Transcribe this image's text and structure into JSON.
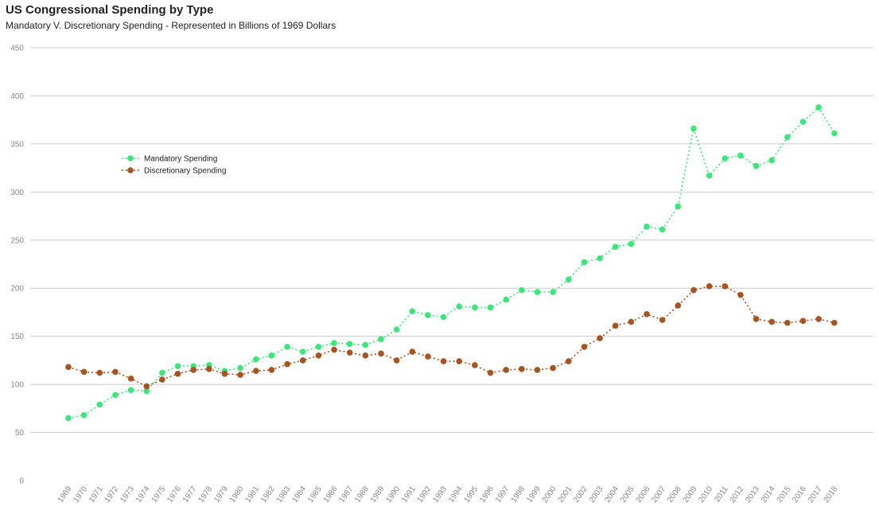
{
  "chart_data": {
    "type": "line",
    "title": "US Congressional Spending by Type",
    "subtitle": "Mandatory V. Discretionary Spending - Represented in Billions of 1969 Dollars",
    "xlabel": "",
    "ylabel": "",
    "ylim": [
      0,
      450
    ],
    "yticks": [
      0,
      50,
      100,
      150,
      200,
      250,
      300,
      350,
      400,
      450
    ],
    "grid": true,
    "legend_position": "top-left",
    "categories": [
      "1969",
      "1970",
      "1971",
      "1972",
      "1973",
      "1974",
      "1975",
      "1976",
      "1977",
      "1978",
      "1979",
      "1980",
      "1981",
      "1982",
      "1983",
      "1984",
      "1985",
      "1986",
      "1987",
      "1988",
      "1989",
      "1990",
      "1991",
      "1992",
      "1993",
      "1994",
      "1995",
      "1996",
      "1997",
      "1998",
      "1999",
      "2000",
      "2001",
      "2002",
      "2003",
      "2004",
      "2005",
      "2006",
      "2007",
      "2008",
      "2009",
      "2010",
      "2011",
      "2012",
      "2013",
      "2014",
      "2015",
      "2016",
      "2017",
      "2018"
    ],
    "series": [
      {
        "name": "Mandatory Spending",
        "color": "#3de57a",
        "values": [
          65,
          68,
          79,
          89,
          94,
          93,
          112,
          119,
          119,
          120,
          114,
          117,
          126,
          130,
          139,
          134,
          139,
          143,
          142,
          141,
          147,
          157,
          176,
          172,
          170,
          181,
          180,
          180,
          188,
          198,
          196,
          196,
          209,
          227,
          231,
          243,
          246,
          264,
          261,
          285,
          366,
          317,
          335,
          338,
          327,
          333,
          357,
          373,
          388,
          361
        ]
      },
      {
        "name": "Discretionary Spending",
        "color": "#a65421",
        "values": [
          118,
          113,
          112,
          113,
          106,
          98,
          105,
          111,
          115,
          116,
          111,
          110,
          114,
          115,
          121,
          125,
          130,
          136,
          133,
          130,
          132,
          125,
          134,
          129,
          124,
          124,
          120,
          112,
          115,
          116,
          115,
          117,
          124,
          139,
          148,
          161,
          165,
          173,
          167,
          182,
          198,
          202,
          202,
          193,
          168,
          165,
          164,
          166,
          168,
          164
        ]
      }
    ]
  }
}
